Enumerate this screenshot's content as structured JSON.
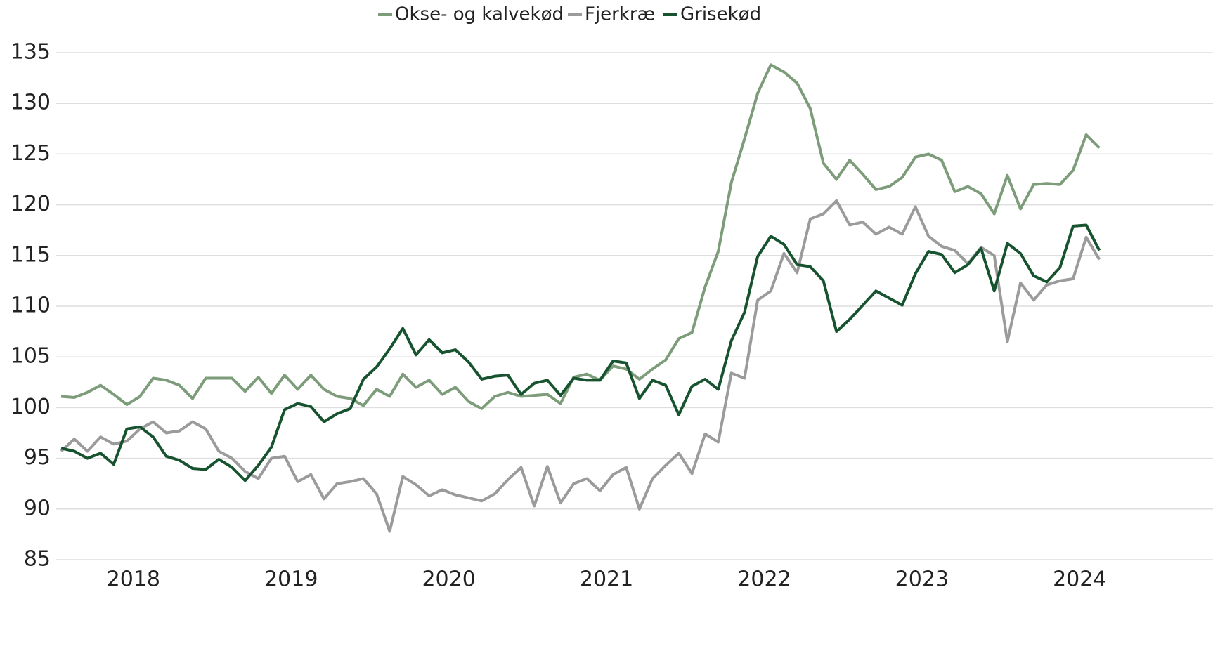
{
  "chart_data": {
    "type": "line",
    "categories": [
      null,
      null,
      null,
      null,
      null,
      null,
      "2018",
      null,
      null,
      null,
      null,
      null,
      null,
      null,
      null,
      null,
      null,
      null,
      "2019",
      null,
      null,
      null,
      null,
      null,
      null,
      null,
      null,
      null,
      null,
      null,
      "2020",
      null,
      null,
      null,
      null,
      null,
      null,
      null,
      null,
      null,
      null,
      null,
      "2021",
      null,
      null,
      null,
      null,
      null,
      null,
      null,
      null,
      null,
      null,
      null,
      "2022",
      null,
      null,
      null,
      null,
      null,
      null,
      null,
      null,
      null,
      null,
      null,
      "2023",
      null,
      null,
      null,
      null,
      null,
      null,
      null,
      null,
      null,
      null,
      null,
      "2024",
      null
    ],
    "series": [
      {
        "name": "Okse- og kalvekød",
        "color": "#7d9c7a",
        "values": [
          101.1,
          101.0,
          101.5,
          102.2,
          101.3,
          100.3,
          101.1,
          102.9,
          102.7,
          102.2,
          100.9,
          102.9,
          102.9,
          102.9,
          101.6,
          103.0,
          101.4,
          103.2,
          101.8,
          103.2,
          101.8,
          101.1,
          100.9,
          100.2,
          101.8,
          101.1,
          103.3,
          102.0,
          102.7,
          101.3,
          102.0,
          100.6,
          99.9,
          101.1,
          101.5,
          101.1,
          101.2,
          101.3,
          100.4,
          103.0,
          103.3,
          102.7,
          104.1,
          103.8,
          102.8,
          103.8,
          104.7,
          106.8,
          107.4,
          111.9,
          115.4,
          122.2,
          126.5,
          131.0,
          133.8,
          133.1,
          132.0,
          129.5,
          124.1,
          122.5,
          124.4,
          123.0,
          121.5,
          121.8,
          122.7,
          124.7,
          125.0,
          124.4,
          121.3,
          121.8,
          121.1,
          119.1,
          122.9,
          119.6,
          122.0,
          122.1,
          122.0,
          123.4,
          126.9,
          125.6
        ]
      },
      {
        "name": "Fjerkræ",
        "color": "#9b9b9b",
        "values": [
          95.7,
          96.9,
          95.7,
          97.1,
          96.4,
          96.7,
          97.9,
          98.6,
          97.5,
          97.7,
          98.6,
          97.9,
          95.7,
          95.0,
          93.7,
          93.0,
          95.0,
          95.2,
          92.7,
          93.4,
          91.0,
          92.5,
          92.7,
          93.0,
          91.5,
          87.8,
          93.2,
          92.4,
          91.3,
          91.9,
          91.4,
          91.1,
          90.8,
          91.5,
          92.9,
          94.1,
          90.3,
          94.2,
          90.6,
          92.5,
          93.0,
          91.8,
          93.4,
          94.1,
          90.0,
          93.0,
          94.3,
          95.5,
          93.5,
          97.4,
          96.6,
          103.4,
          102.9,
          110.6,
          111.5,
          115.2,
          113.3,
          118.6,
          119.1,
          120.4,
          118.0,
          118.3,
          117.1,
          117.8,
          117.1,
          119.8,
          116.9,
          115.9,
          115.5,
          114.2,
          115.8,
          115.0,
          106.5,
          112.3,
          110.6,
          112.1,
          112.5,
          112.7,
          116.8,
          114.6
        ]
      },
      {
        "name": "Grisekød",
        "color": "#17532f",
        "values": [
          96.0,
          95.7,
          95.0,
          95.5,
          94.4,
          97.9,
          98.1,
          97.1,
          95.2,
          94.8,
          94.0,
          93.9,
          94.9,
          94.1,
          92.8,
          94.3,
          96.1,
          99.8,
          100.4,
          100.1,
          98.6,
          99.4,
          99.9,
          102.8,
          104.0,
          105.8,
          107.8,
          105.2,
          106.7,
          105.4,
          105.7,
          104.5,
          102.8,
          103.1,
          103.2,
          101.3,
          102.4,
          102.7,
          101.2,
          102.9,
          102.7,
          102.7,
          104.6,
          104.4,
          100.9,
          102.7,
          102.2,
          99.3,
          102.1,
          102.8,
          101.8,
          106.6,
          109.4,
          114.9,
          116.9,
          116.1,
          114.1,
          113.9,
          112.5,
          107.5,
          108.7,
          110.1,
          111.5,
          110.8,
          110.1,
          113.2,
          115.4,
          115.1,
          113.3,
          114.1,
          115.7,
          111.5,
          116.2,
          115.2,
          113.0,
          112.4,
          113.8,
          117.9,
          118.0,
          115.5
        ]
      }
    ],
    "ylim": [
      85,
      135
    ],
    "yticks": [
      85,
      90,
      95,
      100,
      105,
      110,
      115,
      120,
      125,
      130,
      135
    ],
    "grid": true,
    "legend": "top"
  }
}
